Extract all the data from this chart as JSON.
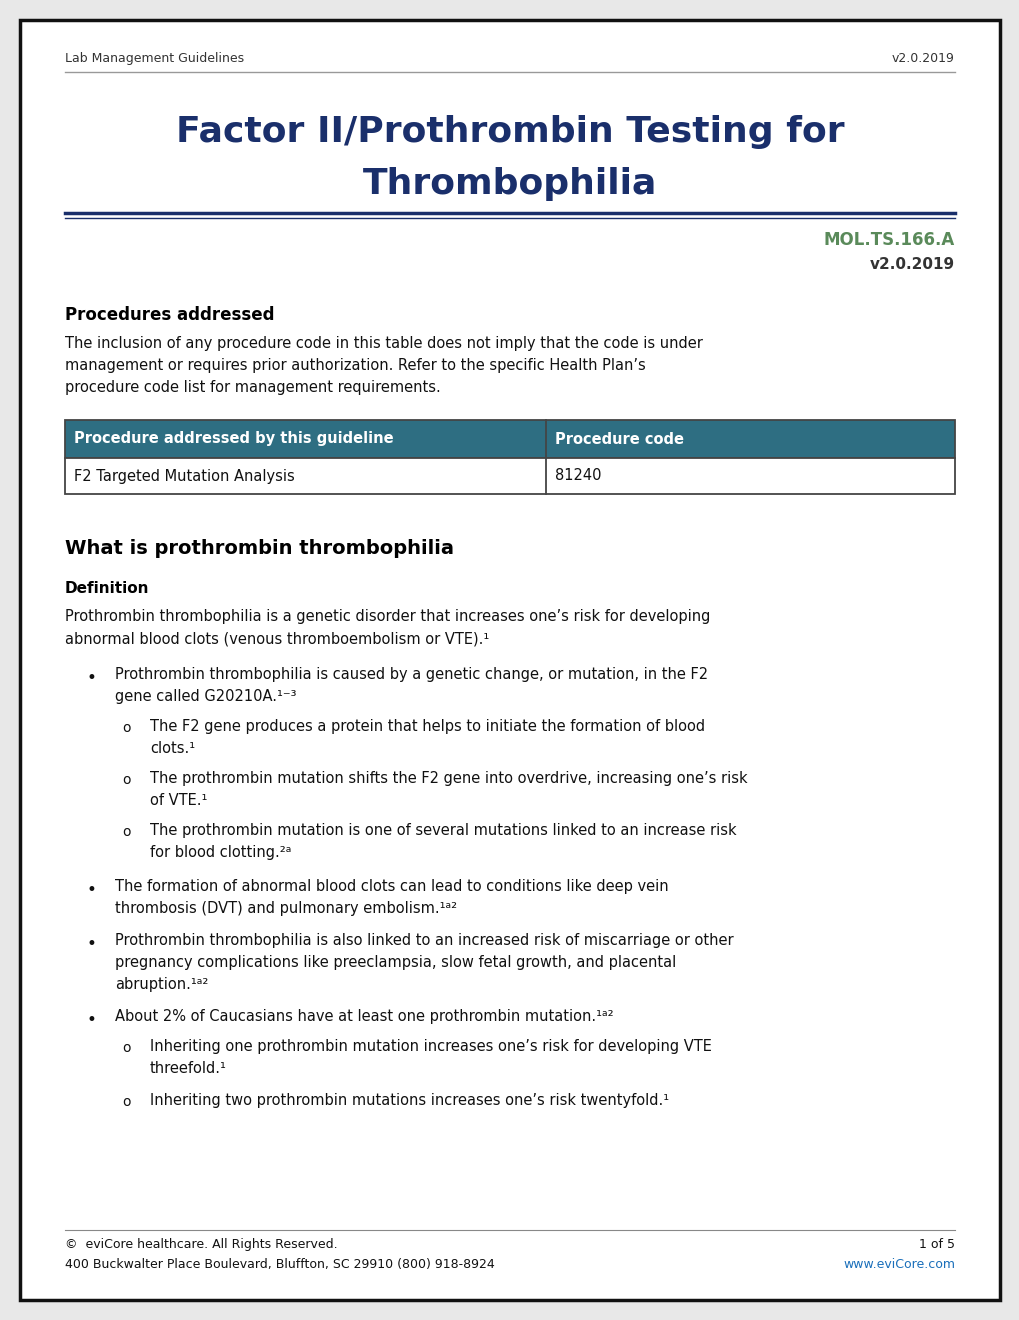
{
  "header_left": "Lab Management Guidelines",
  "header_right": "v2.0.2019",
  "title_line1": "Factor II/Prothrombin Testing for",
  "title_line2": "Thrombophilia",
  "doc_id": "MOL.TS.166.A",
  "doc_version": "v2.0.2019",
  "section1_title": "Procedures addressed",
  "section1_intro": "The inclusion of any procedure code in this table does not imply that the code is under\nmanagement or requires prior authorization. Refer to the specific Health Plan’s\nprocedure code list for management requirements.",
  "table_header1": "Procedure addressed by this guideline",
  "table_header2": "Procedure code",
  "table_row1_col1": "F2 Targeted Mutation Analysis",
  "table_row1_col2": "81240",
  "table_header_bg": "#2e6e82",
  "table_header_fg": "#ffffff",
  "table_row_bg": "#ffffff",
  "table_border": "#444444",
  "section2_title": "What is prothrombin thrombophilia",
  "definition_title": "Definition",
  "definition_text": "Prothrombin thrombophilia is a genetic disorder that increases one’s risk for developing\nabnormal blood clots (venous thromboembolism or VTE).¹",
  "bullet1": "Prothrombin thrombophilia is caused by a genetic change, or mutation, in the F2\ngene called G20210A.¹⁻³",
  "sub_bullet1a": "The F2 gene produces a protein that helps to initiate the formation of blood\nclots.¹",
  "sub_bullet1b": "The prothrombin mutation shifts the F2 gene into overdrive, increasing one’s risk\nof VTE.¹",
  "sub_bullet1c": "The prothrombin mutation is one of several mutations linked to an increase risk\nfor blood clotting.²ᵃ",
  "bullet2": "The formation of abnormal blood clots can lead to conditions like deep vein\nthrombosis (DVT) and pulmonary embolism.¹ᵃ²",
  "bullet3": "Prothrombin thrombophilia is also linked to an increased risk of miscarriage or other\npregnancy complications like preeclampsia, slow fetal growth, and placental\nabruption.¹ᵃ²",
  "bullet4": "About 2% of Caucasians have at least one prothrombin mutation.¹ᵃ²",
  "sub_bullet4a": "Inheriting one prothrombin mutation increases one’s risk for developing VTE\nthreefold.¹",
  "sub_bullet4b": "Inheriting two prothrombin mutations increases one’s risk twentyfold.¹",
  "footer_left1": "©  eviCore healthcare. All Rights Reserved.",
  "footer_right1": "1 of 5",
  "footer_left2": "400 Buckwalter Place Boulevard, Bluffton, SC 29910 (800) 918-8924",
  "footer_right2": "www.eviCore.com",
  "title_color": "#1a2f6b",
  "doc_id_color": "#5a8a5a",
  "link_color": "#1a6fba",
  "border_color": "#111111",
  "bg_color": "#ffffff",
  "header_line_color": "#888888",
  "title_underline_color": "#1a2f6b"
}
